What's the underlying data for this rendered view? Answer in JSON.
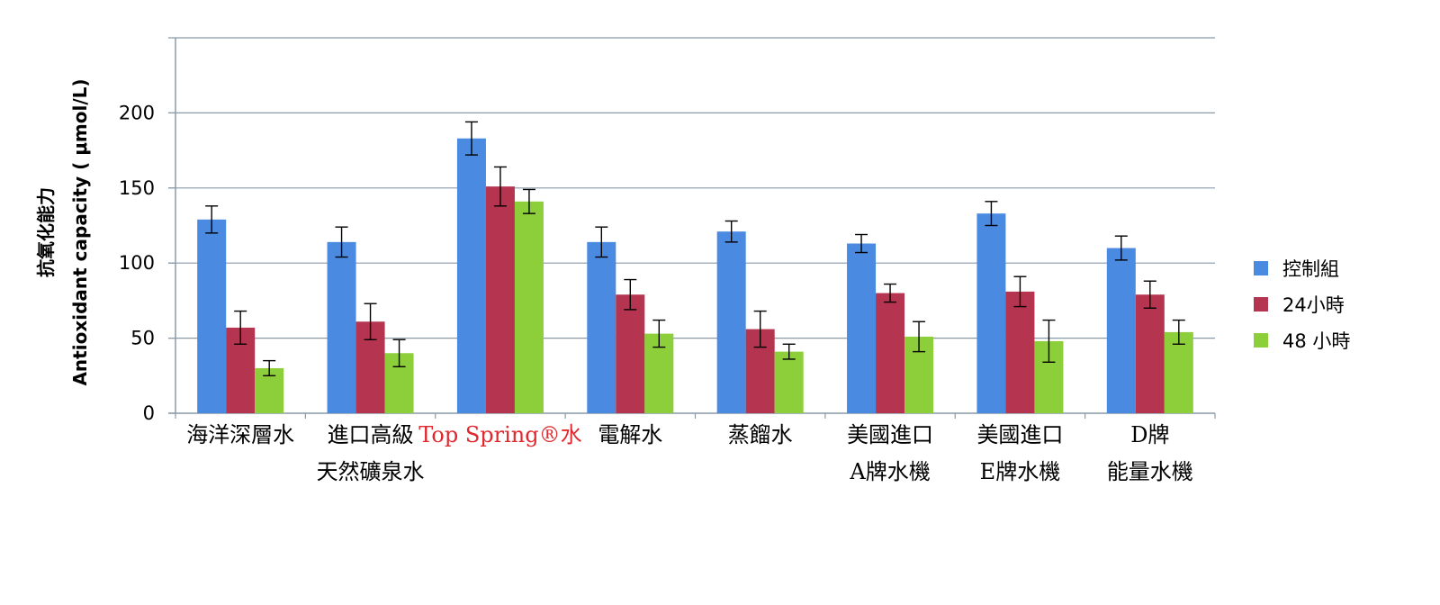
{
  "chart_data": {
    "type": "bar",
    "ylabel_lines": [
      "抗氧化能力",
      "Antioxidant capacity ( μmol/L)"
    ],
    "ylim": [
      0,
      250
    ],
    "yticks": [
      0,
      50,
      100,
      150,
      200
    ],
    "grid": true,
    "legend_position": "right",
    "categories": [
      [
        "海洋深層水"
      ],
      [
        "進口高級",
        "天然礦泉水"
      ],
      [
        "Top Spring®水"
      ],
      [
        "電解水"
      ],
      [
        "蒸餾水"
      ],
      [
        "美國進口",
        "A牌水機"
      ],
      [
        "美國進口",
        "E牌水機"
      ],
      [
        "D牌",
        "能量水機"
      ]
    ],
    "highlight_category": 2,
    "highlight_color": "#e0282e",
    "series": [
      {
        "name": "控制組",
        "color": "#4a8ae0",
        "values": [
          129,
          114,
          183,
          114,
          121,
          113,
          133,
          110
        ],
        "errors": [
          9,
          10,
          11,
          10,
          7,
          6,
          8,
          8
        ]
      },
      {
        "name": "24小時",
        "color": "#b5344f",
        "values": [
          57,
          61,
          151,
          79,
          56,
          80,
          81,
          79
        ],
        "errors": [
          11,
          12,
          13,
          10,
          12,
          6,
          10,
          9
        ]
      },
      {
        "name": "48 小時",
        "color": "#8ccf3a",
        "values": [
          30,
          40,
          141,
          53,
          41,
          51,
          48,
          54
        ],
        "errors": [
          5,
          9,
          8,
          9,
          5,
          10,
          14,
          8
        ]
      }
    ]
  }
}
